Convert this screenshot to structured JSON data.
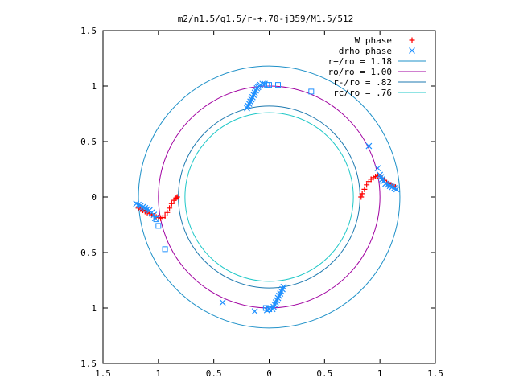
{
  "chart_data": {
    "type": "scatter",
    "title": "m2/n1.5/q1.5/r-+.70-j359/M1.5/512",
    "xlim": [
      -1.5,
      1.5
    ],
    "ylim": [
      -1.5,
      1.5
    ],
    "xticks": [
      -1.5,
      -1,
      -0.5,
      0,
      0.5,
      1,
      1.5
    ],
    "yticks": [
      -1.5,
      -1,
      -0.5,
      0,
      0.5,
      1,
      1.5
    ],
    "xtick_labels": [
      "1.5",
      "1",
      "0.5",
      "0",
      "0.5",
      "1",
      "1.5"
    ],
    "ytick_labels": [
      "1.5",
      "1",
      "0.5",
      "0",
      "0.5",
      "1",
      "1.5"
    ],
    "grid": false,
    "legend_position": "top-right",
    "circles": [
      {
        "label": "r+/ro = 1.18",
        "radius": 1.18,
        "color": "#1e90c8"
      },
      {
        "label": "ro/ro = 1.00",
        "radius": 1.0,
        "color": "#a000a0"
      },
      {
        "label": "r-/ro = .82",
        "radius": 0.82,
        "color": "#1e7ab0"
      },
      {
        "label": "rc/ro = .76",
        "radius": 0.76,
        "color": "#20c8c8"
      }
    ],
    "series": [
      {
        "name": "W phase",
        "marker": "+",
        "color": "#ff0000",
        "points": [
          [
            -1.18,
            -0.1
          ],
          [
            -1.16,
            -0.11
          ],
          [
            -1.14,
            -0.12
          ],
          [
            -1.12,
            -0.13
          ],
          [
            -1.1,
            -0.14
          ],
          [
            -1.08,
            -0.15
          ],
          [
            -1.06,
            -0.16
          ],
          [
            -1.04,
            -0.17
          ],
          [
            -1.02,
            -0.18
          ],
          [
            -1.0,
            -0.185
          ],
          [
            -0.98,
            -0.19
          ],
          [
            -0.96,
            -0.185
          ],
          [
            -0.94,
            -0.17
          ],
          [
            -0.92,
            -0.14
          ],
          [
            -0.9,
            -0.1
          ],
          [
            -0.88,
            -0.06
          ],
          [
            -0.86,
            -0.03
          ],
          [
            -0.84,
            -0.01
          ],
          [
            -0.83,
            0.0
          ],
          [
            0.83,
            0.0
          ],
          [
            0.84,
            0.03
          ],
          [
            0.86,
            0.07
          ],
          [
            0.88,
            0.11
          ],
          [
            0.9,
            0.14
          ],
          [
            0.92,
            0.16
          ],
          [
            0.94,
            0.175
          ],
          [
            0.96,
            0.185
          ],
          [
            0.98,
            0.19
          ],
          [
            1.0,
            0.185
          ],
          [
            1.02,
            0.17
          ],
          [
            1.04,
            0.15
          ],
          [
            1.06,
            0.13
          ],
          [
            1.08,
            0.12
          ],
          [
            1.1,
            0.11
          ],
          [
            1.12,
            0.1
          ],
          [
            1.14,
            0.09
          ]
        ]
      },
      {
        "name": "drho phase",
        "marker": "x",
        "color": "#1e90ff",
        "points": [
          [
            -1.2,
            -0.06
          ],
          [
            -1.18,
            -0.07
          ],
          [
            -1.16,
            -0.08
          ],
          [
            -1.14,
            -0.09
          ],
          [
            -1.12,
            -0.1
          ],
          [
            -1.1,
            -0.11
          ],
          [
            -1.08,
            -0.12
          ],
          [
            -1.06,
            -0.14
          ],
          [
            -1.04,
            -0.16
          ],
          [
            -1.03,
            -0.19
          ],
          [
            -0.2,
            0.8
          ],
          [
            -0.19,
            0.82
          ],
          [
            -0.18,
            0.84
          ],
          [
            -0.17,
            0.86
          ],
          [
            -0.16,
            0.88
          ],
          [
            -0.15,
            0.9
          ],
          [
            -0.14,
            0.92
          ],
          [
            -0.13,
            0.94
          ],
          [
            -0.12,
            0.96
          ],
          [
            -0.11,
            0.98
          ],
          [
            -0.1,
            0.99
          ],
          [
            -0.09,
            1.0
          ],
          [
            -0.08,
            1.01
          ],
          [
            -0.06,
            1.02
          ],
          [
            -0.04,
            1.02
          ],
          [
            1.0,
            0.2
          ],
          [
            1.01,
            0.18
          ],
          [
            1.02,
            0.16
          ],
          [
            1.03,
            0.14
          ],
          [
            1.05,
            0.12
          ],
          [
            1.07,
            0.11
          ],
          [
            1.09,
            0.1
          ],
          [
            1.11,
            0.09
          ],
          [
            1.13,
            0.08
          ],
          [
            1.15,
            0.07
          ],
          [
            0.98,
            0.26
          ],
          [
            0.9,
            0.46
          ],
          [
            0.03,
            -1.01
          ],
          [
            0.04,
            -0.99
          ],
          [
            0.05,
            -0.97
          ],
          [
            0.06,
            -0.95
          ],
          [
            0.07,
            -0.93
          ],
          [
            0.08,
            -0.91
          ],
          [
            0.09,
            -0.89
          ],
          [
            0.1,
            -0.87
          ],
          [
            0.11,
            -0.85
          ],
          [
            0.12,
            -0.83
          ],
          [
            0.13,
            -0.81
          ],
          [
            0.0,
            -1.01
          ],
          [
            -0.02,
            -1.02
          ],
          [
            -0.13,
            -1.03
          ],
          [
            -0.42,
            -0.95
          ]
        ]
      },
      {
        "name": "",
        "marker": "square",
        "color": "#1e90ff",
        "points": [
          [
            -1.0,
            -0.26
          ],
          [
            -0.94,
            -0.47
          ],
          [
            -0.02,
            1.01
          ],
          [
            0.0,
            1.01
          ],
          [
            0.08,
            1.01
          ],
          [
            0.38,
            0.95
          ],
          [
            -1.02,
            -0.2
          ],
          [
            0.0,
            -1.01
          ],
          [
            -0.03,
            -1.0
          ]
        ]
      }
    ]
  }
}
